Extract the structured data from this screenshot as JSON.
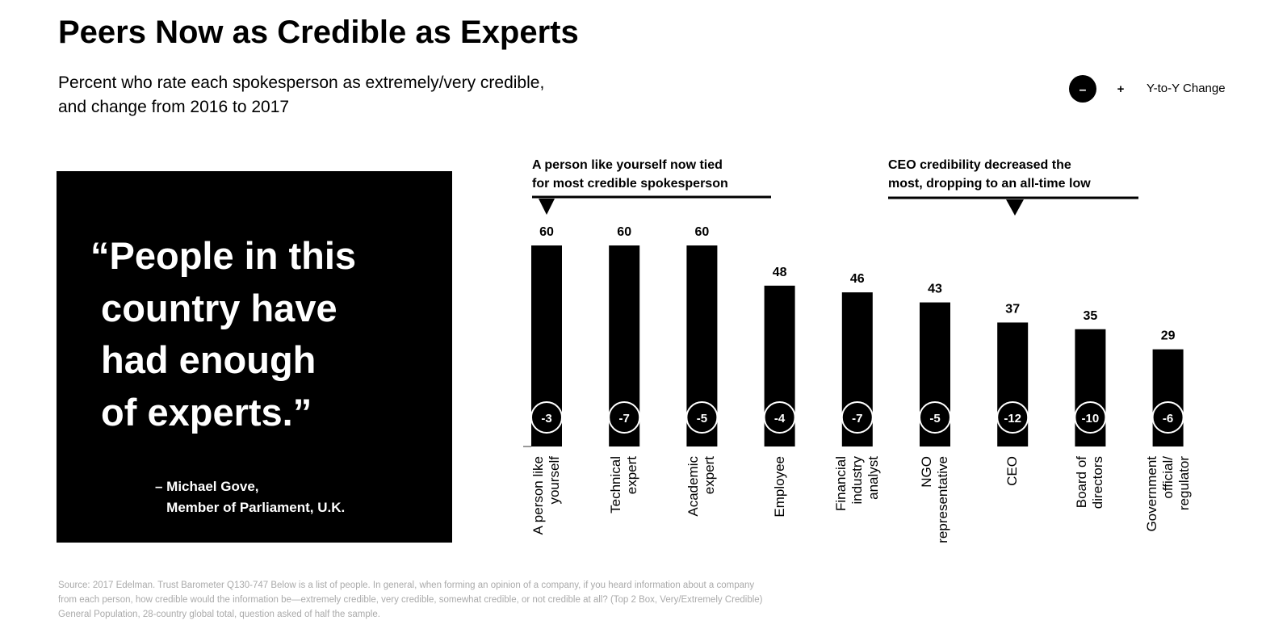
{
  "chart_data": {
    "type": "bar",
    "title": "Peers Now as Credible as Experts",
    "subtitle": "Percent who rate each spokesperson as extremely/very credible,\nand change from 2016 to 2017",
    "categories": [
      "A person like\nyourself",
      "Technical\nexpert",
      "Academic\nexpert",
      "Employee",
      "Financial\nindustry\nanalyst",
      "NGO\nrepresentative",
      "CEO",
      "Board of\ndirectors",
      "Government\nofficial/\nregulator"
    ],
    "values": [
      60,
      60,
      60,
      48,
      46,
      43,
      37,
      35,
      29
    ],
    "changes": [
      -3,
      -7,
      -5,
      -4,
      -7,
      -5,
      -12,
      -10,
      -6
    ],
    "color": "#000000",
    "ylim": [
      0,
      60
    ],
    "legend": {
      "minus": "–",
      "plus": "+",
      "label": "Y-to-Y Change"
    },
    "annotations": [
      "A person like yourself now tied\nfor most credible spokesperson",
      "CEO credibility decreased the\nmost, dropping to an all-time low"
    ]
  },
  "quote": {
    "text": "“People in this\n country have\n had enough\n of experts.”",
    "attribution": "– Michael Gove,\n   Member of Parliament, U.K."
  },
  "source": "Source: 2017 Edelman. Trust Barometer Q130-747 Below is a list of people. In general, when forming an opinion of a company, if you heard information about a company\nfrom each person, how credible would the information be—extremely credible, very credible, somewhat credible, or not credible at all? (Top 2 Box, Very/Extremely Credible)\nGeneral Population, 28-country global total, question asked of half the sample."
}
